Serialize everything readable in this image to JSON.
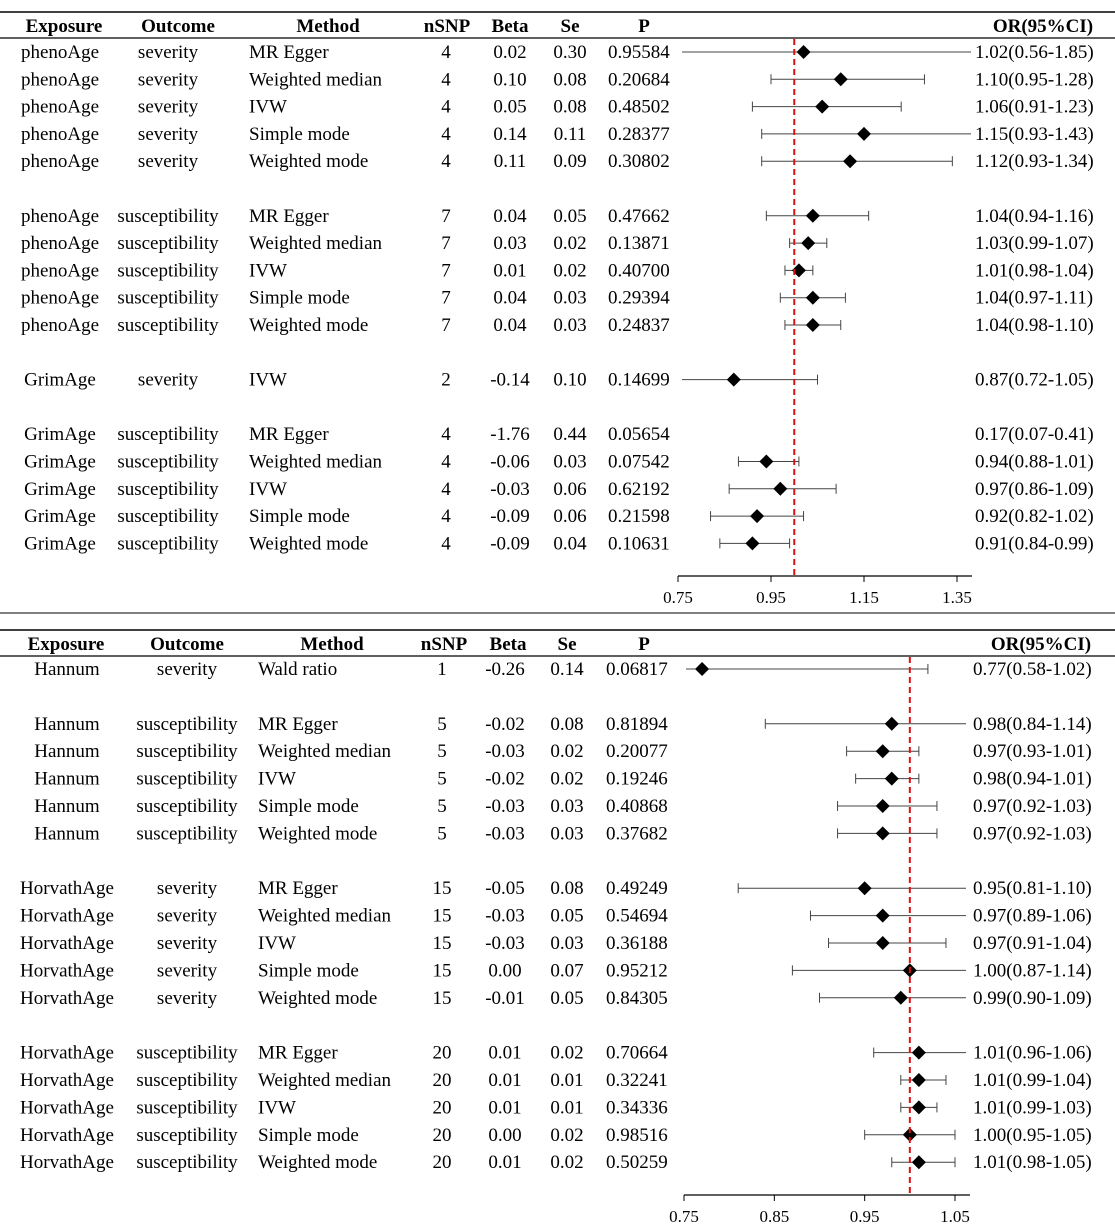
{
  "columns": [
    "Exposure",
    "Outcome",
    "Method",
    "nSNP",
    "Beta",
    "Se",
    "P",
    "OR(95%CI)"
  ],
  "chart_data": [
    {
      "type": "forest",
      "title": "",
      "xlabel": "",
      "xlim": [
        0.75,
        1.35
      ],
      "xticks": [
        0.75,
        0.95,
        1.15,
        1.35
      ],
      "xtick_labels": [
        "0.75",
        "0.95",
        "1.15",
        "1.35"
      ],
      "reference_line": 1.0,
      "rows": [
        {
          "exposure": "phenoAge",
          "outcome": "severity",
          "method": "MR Egger",
          "nsnp": "4",
          "beta": "0.02",
          "se": "0.30",
          "p": "0.95584",
          "or_text": "1.02(0.56-1.85)",
          "or": 1.02,
          "lo": 0.56,
          "hi": 1.85
        },
        {
          "exposure": "phenoAge",
          "outcome": "severity",
          "method": "Weighted median",
          "nsnp": "4",
          "beta": "0.10",
          "se": "0.08",
          "p": "0.20684",
          "or_text": "1.10(0.95-1.28)",
          "or": 1.1,
          "lo": 0.95,
          "hi": 1.28
        },
        {
          "exposure": "phenoAge",
          "outcome": "severity",
          "method": "IVW",
          "nsnp": "4",
          "beta": "0.05",
          "se": "0.08",
          "p": "0.48502",
          "or_text": "1.06(0.91-1.23)",
          "or": 1.06,
          "lo": 0.91,
          "hi": 1.23
        },
        {
          "exposure": "phenoAge",
          "outcome": "severity",
          "method": "Simple mode",
          "nsnp": "4",
          "beta": "0.14",
          "se": "0.11",
          "p": "0.28377",
          "or_text": "1.15(0.93-1.43)",
          "or": 1.15,
          "lo": 0.93,
          "hi": 1.43
        },
        {
          "exposure": "phenoAge",
          "outcome": "severity",
          "method": "Weighted mode",
          "nsnp": "4",
          "beta": "0.11",
          "se": "0.09",
          "p": "0.30802",
          "or_text": "1.12(0.93-1.34)",
          "or": 1.12,
          "lo": 0.93,
          "hi": 1.34
        },
        null,
        {
          "exposure": "phenoAge",
          "outcome": "susceptibility",
          "method": "MR Egger",
          "nsnp": "7",
          "beta": "0.04",
          "se": "0.05",
          "p": "0.47662",
          "or_text": "1.04(0.94-1.16)",
          "or": 1.04,
          "lo": 0.94,
          "hi": 1.16
        },
        {
          "exposure": "phenoAge",
          "outcome": "susceptibility",
          "method": "Weighted median",
          "nsnp": "7",
          "beta": "0.03",
          "se": "0.02",
          "p": "0.13871",
          "or_text": "1.03(0.99-1.07)",
          "or": 1.03,
          "lo": 0.99,
          "hi": 1.07
        },
        {
          "exposure": "phenoAge",
          "outcome": "susceptibility",
          "method": "IVW",
          "nsnp": "7",
          "beta": "0.01",
          "se": "0.02",
          "p": "0.40700",
          "or_text": "1.01(0.98-1.04)",
          "or": 1.01,
          "lo": 0.98,
          "hi": 1.04
        },
        {
          "exposure": "phenoAge",
          "outcome": "susceptibility",
          "method": "Simple mode",
          "nsnp": "7",
          "beta": "0.04",
          "se": "0.03",
          "p": "0.29394",
          "or_text": "1.04(0.97-1.11)",
          "or": 1.04,
          "lo": 0.97,
          "hi": 1.11
        },
        {
          "exposure": "phenoAge",
          "outcome": "susceptibility",
          "method": "Weighted mode",
          "nsnp": "7",
          "beta": "0.04",
          "se": "0.03",
          "p": "0.24837",
          "or_text": "1.04(0.98-1.10)",
          "or": 1.04,
          "lo": 0.98,
          "hi": 1.1
        },
        null,
        {
          "exposure": "GrimAge",
          "outcome": "severity",
          "method": "IVW",
          "nsnp": "2",
          "beta": "-0.14",
          "se": "0.10",
          "p": "0.14699",
          "or_text": "0.87(0.72-1.05)",
          "or": 0.87,
          "lo": 0.72,
          "hi": 1.05
        },
        null,
        {
          "exposure": "GrimAge",
          "outcome": "susceptibility",
          "method": "MR Egger",
          "nsnp": "4",
          "beta": "-1.76",
          "se": "0.44",
          "p": "0.05654",
          "or_text": "0.17(0.07-0.41)",
          "or": 0.17,
          "lo": 0.07,
          "hi": 0.41
        },
        {
          "exposure": "GrimAge",
          "outcome": "susceptibility",
          "method": "Weighted median",
          "nsnp": "4",
          "beta": "-0.06",
          "se": "0.03",
          "p": "0.07542",
          "or_text": "0.94(0.88-1.01)",
          "or": 0.94,
          "lo": 0.88,
          "hi": 1.01
        },
        {
          "exposure": "GrimAge",
          "outcome": "susceptibility",
          "method": "IVW",
          "nsnp": "4",
          "beta": "-0.03",
          "se": "0.06",
          "p": "0.62192",
          "or_text": "0.97(0.86-1.09)",
          "or": 0.97,
          "lo": 0.86,
          "hi": 1.09
        },
        {
          "exposure": "GrimAge",
          "outcome": "susceptibility",
          "method": "Simple mode",
          "nsnp": "4",
          "beta": "-0.09",
          "se": "0.06",
          "p": "0.21598",
          "or_text": "0.92(0.82-1.02)",
          "or": 0.92,
          "lo": 0.82,
          "hi": 1.02
        },
        {
          "exposure": "GrimAge",
          "outcome": "susceptibility",
          "method": "Weighted mode",
          "nsnp": "4",
          "beta": "-0.09",
          "se": "0.04",
          "p": "0.10631",
          "or_text": "0.91(0.84-0.99)",
          "or": 0.91,
          "lo": 0.84,
          "hi": 0.99
        }
      ]
    },
    {
      "type": "forest",
      "title": "",
      "xlabel": "",
      "xlim": [
        0.75,
        1.05
      ],
      "xticks": [
        0.75,
        0.85,
        0.95,
        1.05
      ],
      "xtick_labels": [
        "0.75",
        "0.85",
        "0.95",
        "1.05"
      ],
      "reference_line": 1.0,
      "rows": [
        {
          "exposure": "Hannum",
          "outcome": "severity",
          "method": "Wald ratio",
          "nsnp": "1",
          "beta": "-0.26",
          "se": "0.14",
          "p": "0.06817",
          "or_text": "0.77(0.58-1.02)",
          "or": 0.77,
          "lo": 0.58,
          "hi": 1.02
        },
        null,
        {
          "exposure": "Hannum",
          "outcome": "susceptibility",
          "method": "MR Egger",
          "nsnp": "5",
          "beta": "-0.02",
          "se": "0.08",
          "p": "0.81894",
          "or_text": "0.98(0.84-1.14)",
          "or": 0.98,
          "lo": 0.84,
          "hi": 1.14
        },
        {
          "exposure": "Hannum",
          "outcome": "susceptibility",
          "method": "Weighted median",
          "nsnp": "5",
          "beta": "-0.03",
          "se": "0.02",
          "p": "0.20077",
          "or_text": "0.97(0.93-1.01)",
          "or": 0.97,
          "lo": 0.93,
          "hi": 1.01
        },
        {
          "exposure": "Hannum",
          "outcome": "susceptibility",
          "method": "IVW",
          "nsnp": "5",
          "beta": "-0.02",
          "se": "0.02",
          "p": "0.19246",
          "or_text": "0.98(0.94-1.01)",
          "or": 0.98,
          "lo": 0.94,
          "hi": 1.01
        },
        {
          "exposure": "Hannum",
          "outcome": "susceptibility",
          "method": "Simple mode",
          "nsnp": "5",
          "beta": "-0.03",
          "se": "0.03",
          "p": "0.40868",
          "or_text": "0.97(0.92-1.03)",
          "or": 0.97,
          "lo": 0.92,
          "hi": 1.03
        },
        {
          "exposure": "Hannum",
          "outcome": "susceptibility",
          "method": "Weighted mode",
          "nsnp": "5",
          "beta": "-0.03",
          "se": "0.03",
          "p": "0.37682",
          "or_text": "0.97(0.92-1.03)",
          "or": 0.97,
          "lo": 0.92,
          "hi": 1.03
        },
        null,
        {
          "exposure": "HorvathAge",
          "outcome": "severity",
          "method": "MR Egger",
          "nsnp": "15",
          "beta": "-0.05",
          "se": "0.08",
          "p": "0.49249",
          "or_text": "0.95(0.81-1.10)",
          "or": 0.95,
          "lo": 0.81,
          "hi": 1.1
        },
        {
          "exposure": "HorvathAge",
          "outcome": "severity",
          "method": "Weighted median",
          "nsnp": "15",
          "beta": "-0.03",
          "se": "0.05",
          "p": "0.54694",
          "or_text": "0.97(0.89-1.06)",
          "or": 0.97,
          "lo": 0.89,
          "hi": 1.06
        },
        {
          "exposure": "HorvathAge",
          "outcome": "severity",
          "method": "IVW",
          "nsnp": "15",
          "beta": "-0.03",
          "se": "0.03",
          "p": "0.36188",
          "or_text": "0.97(0.91-1.04)",
          "or": 0.97,
          "lo": 0.91,
          "hi": 1.04
        },
        {
          "exposure": "HorvathAge",
          "outcome": "severity",
          "method": "Simple mode",
          "nsnp": "15",
          "beta": "0.00",
          "se": "0.07",
          "p": "0.95212",
          "or_text": "1.00(0.87-1.14)",
          "or": 1.0,
          "lo": 0.87,
          "hi": 1.14
        },
        {
          "exposure": "HorvathAge",
          "outcome": "severity",
          "method": "Weighted mode",
          "nsnp": "15",
          "beta": "-0.01",
          "se": "0.05",
          "p": "0.84305",
          "or_text": "0.99(0.90-1.09)",
          "or": 0.99,
          "lo": 0.9,
          "hi": 1.09
        },
        null,
        {
          "exposure": "HorvathAge",
          "outcome": "susceptibility",
          "method": "MR Egger",
          "nsnp": "20",
          "beta": "0.01",
          "se": "0.02",
          "p": "0.70664",
          "or_text": "1.01(0.96-1.06)",
          "or": 1.01,
          "lo": 0.96,
          "hi": 1.06
        },
        {
          "exposure": "HorvathAge",
          "outcome": "susceptibility",
          "method": "Weighted median",
          "nsnp": "20",
          "beta": "0.01",
          "se": "0.01",
          "p": "0.32241",
          "or_text": "1.01(0.99-1.04)",
          "or": 1.01,
          "lo": 0.99,
          "hi": 1.04
        },
        {
          "exposure": "HorvathAge",
          "outcome": "susceptibility",
          "method": "IVW",
          "nsnp": "20",
          "beta": "0.01",
          "se": "0.01",
          "p": "0.34336",
          "or_text": "1.01(0.99-1.03)",
          "or": 1.01,
          "lo": 0.99,
          "hi": 1.03
        },
        {
          "exposure": "HorvathAge",
          "outcome": "susceptibility",
          "method": "Simple mode",
          "nsnp": "20",
          "beta": "0.00",
          "se": "0.02",
          "p": "0.98516",
          "or_text": "1.00(0.95-1.05)",
          "or": 1.0,
          "lo": 0.95,
          "hi": 1.05
        },
        {
          "exposure": "HorvathAge",
          "outcome": "susceptibility",
          "method": "Weighted mode",
          "nsnp": "20",
          "beta": "0.01",
          "se": "0.02",
          "p": "0.50259",
          "or_text": "1.01(0.98-1.05)",
          "or": 1.01,
          "lo": 0.98,
          "hi": 1.05
        }
      ]
    }
  ]
}
